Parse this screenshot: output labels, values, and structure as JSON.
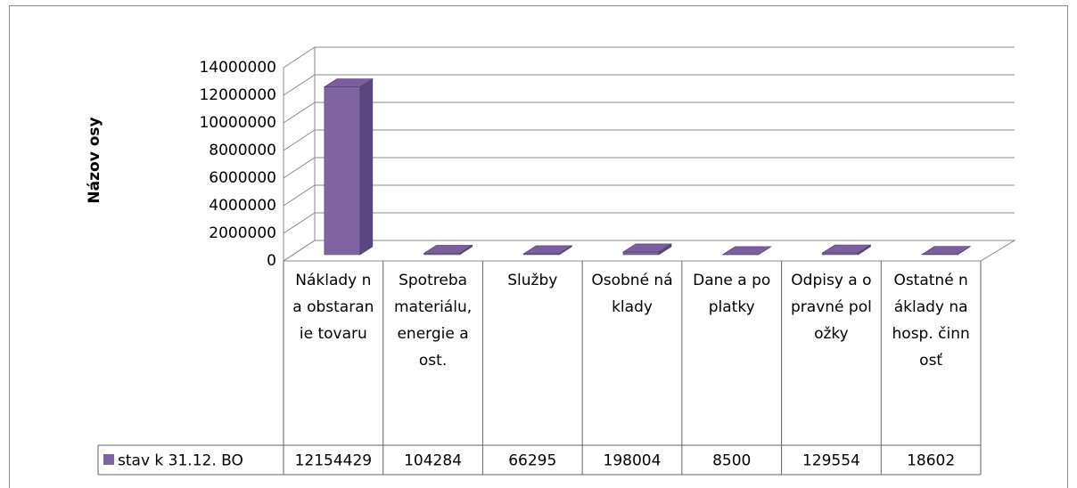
{
  "chart_data": {
    "type": "bar3d",
    "y_axis_label": "Názov osy",
    "categories": [
      "Náklady na obstaranie tovaru",
      "Spotreba materiálu, energie a ost.",
      "Služby",
      "Osobné náklady",
      "Dane a poplatky",
      "Odpisy a opravné položky",
      "Ostatné náklady na hosp. činnosť"
    ],
    "series": [
      {
        "name": "stav k 31.12. BO",
        "color": "#8064a2",
        "values": [
          12154429,
          104284,
          66295,
          198004,
          8500,
          129554,
          18602
        ]
      }
    ],
    "ylim": [
      0,
      14000000
    ],
    "yticks": [
      0,
      2000000,
      4000000,
      6000000,
      8000000,
      10000000,
      12000000,
      14000000
    ],
    "grid": true,
    "data_table": true
  }
}
